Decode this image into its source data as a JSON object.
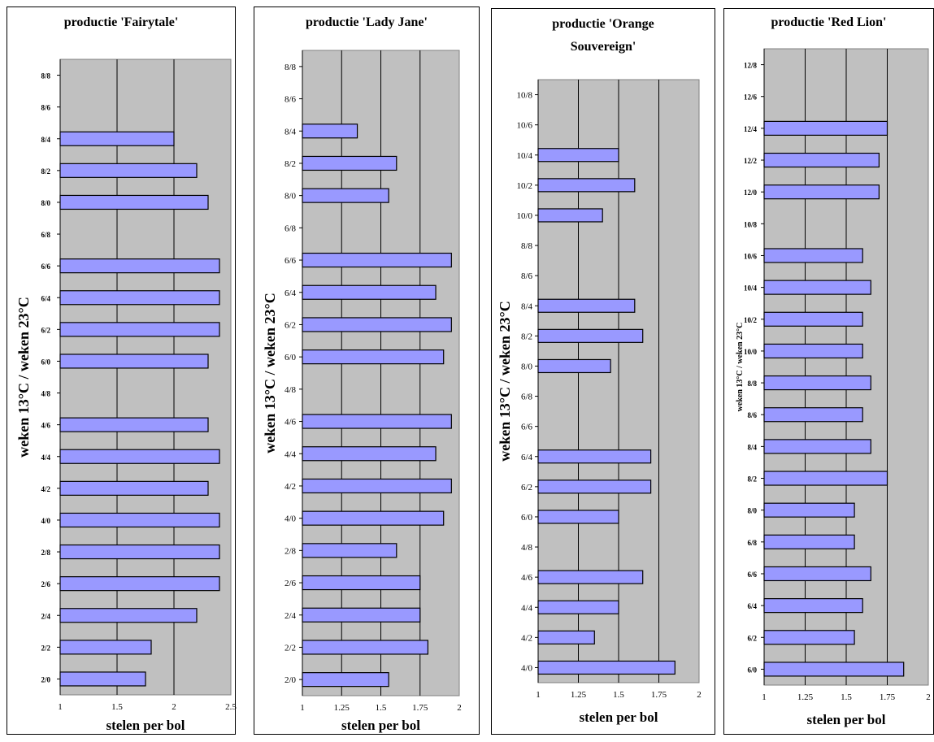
{
  "chart_data": [
    {
      "type": "bar",
      "orientation": "horizontal",
      "title": "productie 'Fairytale'",
      "xlabel": "stelen per bol",
      "ylabel": "weken 13°C / weken 23°C",
      "xlim": [
        1,
        2.5
      ],
      "xticks": [
        "1",
        "1.5",
        "2",
        "2.5"
      ],
      "categories": [
        "2/0",
        "2/2",
        "2/4",
        "2/6",
        "2/8",
        "4/0",
        "4/2",
        "4/4",
        "4/6",
        "4/8",
        "6/0",
        "6/2",
        "6/4",
        "6/6",
        "6/8",
        "8/0",
        "8/2",
        "8/4",
        "8/6",
        "8/8"
      ],
      "values": [
        1.75,
        1.8,
        2.2,
        2.4,
        2.4,
        2.4,
        2.3,
        2.4,
        2.3,
        null,
        2.3,
        2.4,
        2.4,
        2.4,
        null,
        2.3,
        2.2,
        2.0,
        null,
        null
      ]
    },
    {
      "type": "bar",
      "orientation": "horizontal",
      "title": "productie 'Lady Jane'",
      "xlabel": "stelen per bol",
      "ylabel": "weken 13°C / weken 23°C",
      "xlim": [
        1,
        2
      ],
      "xticks": [
        "1",
        "1.25",
        "1.5",
        "1.75",
        "2"
      ],
      "categories": [
        "2/0",
        "2/2",
        "2/4",
        "2/6",
        "2/8",
        "4/0",
        "4/2",
        "4/4",
        "4/6",
        "4/8",
        "6/0",
        "6/2",
        "6/4",
        "6/6",
        "6/8",
        "8/0",
        "8/2",
        "8/4",
        "8/6",
        "8/8"
      ],
      "values": [
        1.55,
        1.8,
        1.75,
        1.75,
        1.6,
        1.9,
        1.95,
        1.85,
        1.95,
        null,
        1.9,
        1.95,
        1.85,
        1.95,
        null,
        1.55,
        1.6,
        1.35,
        null,
        null
      ]
    },
    {
      "type": "bar",
      "orientation": "horizontal",
      "title_lines": [
        "productie 'Orange",
        "Souvereign'"
      ],
      "xlabel": "stelen per bol",
      "ylabel": "weken 13°C / weken 23°C",
      "xlim": [
        1,
        2
      ],
      "xticks": [
        "1",
        "1.25",
        "1.5",
        "1.75",
        "2"
      ],
      "categories": [
        "4/0",
        "4/2",
        "4/4",
        "4/6",
        "4/8",
        "6/0",
        "6/2",
        "6/4",
        "6/6",
        "6/8",
        "8/0",
        "8/2",
        "8/4",
        "8/6",
        "8/8",
        "10/0",
        "10/2",
        "10/4",
        "10/6",
        "10/8"
      ],
      "values": [
        1.85,
        1.35,
        1.5,
        1.65,
        null,
        1.5,
        1.7,
        1.7,
        null,
        null,
        1.45,
        1.65,
        1.6,
        null,
        null,
        1.4,
        1.6,
        1.5,
        null,
        null
      ]
    },
    {
      "type": "bar",
      "orientation": "horizontal",
      "title": "productie 'Red Lion'",
      "xlabel": "stelen per bol",
      "ylabel": "weken 13°C / weken 23°C",
      "xlim": [
        1,
        2
      ],
      "xticks": [
        "1",
        "1.25",
        "1.5",
        "1.75",
        "2"
      ],
      "categories": [
        "6/0",
        "6/2",
        "6/4",
        "6/6",
        "6/8",
        "8/0",
        "8/2",
        "8/4",
        "8/6",
        "8/8",
        "10/0",
        "10/2",
        "10/4",
        "10/6",
        "10/8",
        "12/0",
        "12/2",
        "12/4",
        "12/6",
        "12/8"
      ],
      "values": [
        1.85,
        1.55,
        1.6,
        1.65,
        1.55,
        1.55,
        1.75,
        1.65,
        1.6,
        1.65,
        1.6,
        1.6,
        1.65,
        1.6,
        null,
        1.7,
        1.7,
        1.75,
        null,
        null
      ]
    }
  ]
}
